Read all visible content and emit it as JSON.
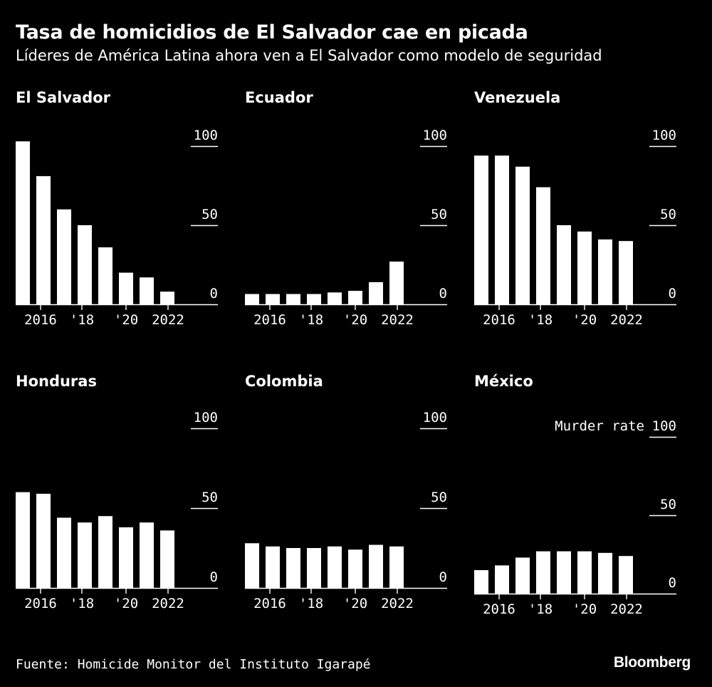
{
  "title": "Tasa de homicidios de El Salvador cae en picada",
  "subtitle": "Líderes de América Latina ahora ven a El Salvador como modelo de seguridad",
  "source": "Fuente: Homicide Monitor del Instituto Igarapé",
  "brand": "Bloomberg",
  "chart_data": [
    {
      "type": "bar",
      "title": "El Salvador",
      "x": [
        2015,
        2016,
        2017,
        2018,
        2019,
        2020,
        2021,
        2022
      ],
      "values": [
        103,
        81,
        60,
        50,
        36,
        20,
        17,
        8
      ],
      "x_tick_labels": [
        "2016",
        "'18",
        "'20",
        "2022"
      ],
      "y_ticks": [
        0,
        50,
        100
      ],
      "ylim": [
        0,
        100
      ]
    },
    {
      "type": "bar",
      "title": "Ecuador",
      "x": [
        2015,
        2016,
        2017,
        2018,
        2019,
        2020,
        2021,
        2022
      ],
      "values": [
        6.5,
        6.5,
        6.5,
        6.5,
        7.5,
        8.5,
        14,
        27
      ],
      "x_tick_labels": [
        "2016",
        "'18",
        "'20",
        "2022"
      ],
      "y_ticks": [
        0,
        50,
        100
      ],
      "ylim": [
        0,
        100
      ]
    },
    {
      "type": "bar",
      "title": "Venezuela",
      "x": [
        2015,
        2016,
        2017,
        2018,
        2019,
        2020,
        2021,
        2022
      ],
      "values": [
        94,
        94,
        87,
        74,
        50,
        46,
        41,
        40
      ],
      "x_tick_labels": [
        "2016",
        "'18",
        "'20",
        "2022"
      ],
      "y_ticks": [
        0,
        50,
        100
      ],
      "ylim": [
        0,
        100
      ]
    },
    {
      "type": "bar",
      "title": "Honduras",
      "x": [
        2015,
        2016,
        2017,
        2018,
        2019,
        2020,
        2021,
        2022
      ],
      "values": [
        60,
        59,
        44,
        41,
        45,
        38,
        41,
        36
      ],
      "x_tick_labels": [
        "2016",
        "'18",
        "'20",
        "2022"
      ],
      "y_ticks": [
        0,
        50,
        100
      ],
      "ylim": [
        0,
        100
      ]
    },
    {
      "type": "bar",
      "title": "Colombia",
      "x": [
        2015,
        2016,
        2017,
        2018,
        2019,
        2020,
        2021,
        2022
      ],
      "values": [
        28,
        26,
        25,
        25,
        26,
        24,
        27,
        26
      ],
      "x_tick_labels": [
        "2016",
        "'18",
        "'20",
        "2022"
      ],
      "y_ticks": [
        0,
        50,
        100
      ],
      "ylim": [
        0,
        100
      ]
    },
    {
      "type": "bar",
      "title": "México",
      "x": [
        2015,
        2016,
        2017,
        2018,
        2019,
        2020,
        2021,
        2022
      ],
      "values": [
        15,
        18,
        23,
        27,
        27,
        27,
        26,
        24
      ],
      "x_tick_labels": [
        "2016",
        "'18",
        "'20",
        "2022"
      ],
      "y_ticks": [
        0,
        50,
        100
      ],
      "ylim": [
        0,
        100
      ],
      "y_axis_label": "Murder rate"
    }
  ]
}
